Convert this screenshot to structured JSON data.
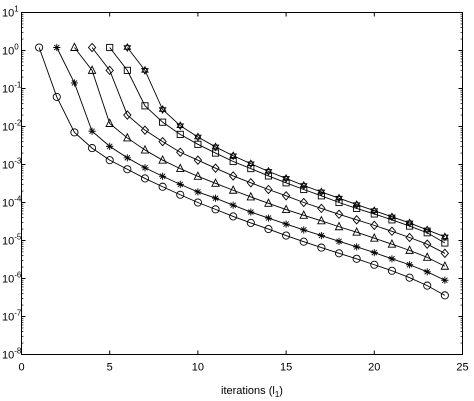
{
  "chart_data": {
    "type": "line",
    "title": "",
    "xlabel_main": "iterations (l",
    "xlabel_sub": "1",
    "xlabel_close": ")",
    "ylabel": "",
    "xlim": [
      0,
      25
    ],
    "ylim_log10": [
      -8,
      1
    ],
    "yscale": "log",
    "grid": false,
    "xticks": [
      "0",
      "5",
      "10",
      "15",
      "20",
      "25"
    ],
    "yticks": [
      {
        "base": "10",
        "exp": "1"
      },
      {
        "base": "10",
        "exp": "0"
      },
      {
        "base": "10",
        "exp": "-1"
      },
      {
        "base": "10",
        "exp": "-2"
      },
      {
        "base": "10",
        "exp": "-3"
      },
      {
        "base": "10",
        "exp": "-4"
      },
      {
        "base": "10",
        "exp": "-5"
      },
      {
        "base": "10",
        "exp": "-6"
      },
      {
        "base": "10",
        "exp": "-7"
      },
      {
        "base": "10",
        "exp": "-8"
      }
    ],
    "series": [
      {
        "marker": "circle",
        "x": [
          1,
          2,
          3,
          4,
          5,
          6,
          7,
          8,
          9,
          10,
          11,
          12,
          13,
          14,
          15,
          16,
          17,
          18,
          19,
          20,
          21,
          22,
          23,
          24
        ],
        "y": [
          1.2,
          0.06,
          0.007,
          0.0027,
          0.0013,
          0.00075,
          0.00043,
          0.00026,
          0.00016,
          0.0001,
          6.6e-05,
          4.3e-05,
          2.9e-05,
          2e-05,
          1.35e-05,
          9.3e-06,
          6.5e-06,
          4.6e-06,
          3.3e-06,
          2.3e-06,
          1.6e-06,
          1.05e-06,
          6.5e-07,
          3.6e-07
        ]
      },
      {
        "marker": "asterisk",
        "x": [
          2,
          3,
          4,
          5,
          6,
          7,
          8,
          9,
          10,
          11,
          12,
          13,
          14,
          15,
          16,
          17,
          18,
          19,
          20,
          21,
          22,
          23,
          24
        ],
        "y": [
          1.2,
          0.14,
          0.0075,
          0.003,
          0.0015,
          0.00082,
          0.00049,
          0.0003,
          0.00019,
          0.00013,
          8.5e-05,
          5.6e-05,
          3.9e-05,
          2.7e-05,
          1.9e-05,
          1.35e-05,
          9.5e-06,
          6.8e-06,
          4.8e-06,
          3.3e-06,
          2.3e-06,
          1.5e-06,
          9e-07
        ]
      },
      {
        "marker": "triangle",
        "x": [
          3,
          4,
          5,
          6,
          7,
          8,
          9,
          10,
          11,
          12,
          13,
          14,
          15,
          16,
          17,
          18,
          19,
          20,
          21,
          22,
          23,
          24
        ],
        "y": [
          1.2,
          0.3,
          0.012,
          0.005,
          0.0024,
          0.0013,
          0.00078,
          0.00049,
          0.00032,
          0.00021,
          0.00014,
          9.5e-05,
          6.5e-05,
          4.6e-05,
          3.3e-05,
          2.3e-05,
          1.65e-05,
          1.15e-05,
          8e-06,
          5.5e-06,
          3.6e-06,
          2.1e-06
        ]
      },
      {
        "marker": "diamond",
        "x": [
          4,
          5,
          6,
          7,
          8,
          9,
          10,
          11,
          12,
          13,
          14,
          15,
          16,
          17,
          18,
          19,
          20,
          21,
          22,
          23,
          24
        ],
        "y": [
          1.2,
          0.3,
          0.02,
          0.008,
          0.004,
          0.0021,
          0.0013,
          0.0008,
          0.0005,
          0.00033,
          0.00022,
          0.00015,
          0.0001,
          7e-05,
          4.9e-05,
          3.5e-05,
          2.5e-05,
          1.75e-05,
          1.2e-05,
          8e-06,
          4.6e-06
        ]
      },
      {
        "marker": "square",
        "x": [
          5,
          6,
          7,
          8,
          9,
          10,
          11,
          12,
          13,
          14,
          15,
          16,
          17,
          18,
          19,
          20,
          21,
          22,
          23,
          24
        ],
        "y": [
          1.2,
          0.3,
          0.035,
          0.013,
          0.0062,
          0.0034,
          0.002,
          0.0012,
          0.00078,
          0.0005,
          0.00033,
          0.00022,
          0.00015,
          0.0001,
          7e-05,
          5e-05,
          3.5e-05,
          2.4e-05,
          1.6e-05,
          8.6e-06
        ]
      },
      {
        "marker": "hexagram",
        "x": [
          6,
          7,
          8,
          9,
          10,
          11,
          12,
          13,
          14,
          15,
          16,
          17,
          18,
          19,
          20,
          21,
          22,
          23,
          24
        ],
        "y": [
          1.2,
          0.3,
          0.028,
          0.0105,
          0.0053,
          0.0029,
          0.0017,
          0.00105,
          0.00066,
          0.00043,
          0.00028,
          0.00019,
          0.00013,
          8.8e-05,
          6.1e-05,
          4.2e-05,
          2.9e-05,
          1.9e-05,
          1.25e-05
        ]
      }
    ]
  }
}
